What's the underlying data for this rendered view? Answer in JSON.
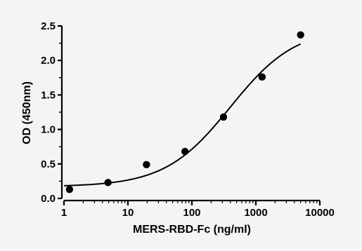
{
  "chart_data": {
    "type": "scatter",
    "title": "",
    "xlabel": "MERS-RBD-Fc (ng/ml)",
    "ylabel": "OD (450nm)",
    "x_scale": "log",
    "xlim": [
      1,
      10000
    ],
    "ylim": [
      0,
      2.5
    ],
    "x_ticks": [
      1,
      10,
      100,
      1000,
      10000
    ],
    "x_tick_labels": [
      "1",
      "10",
      "100",
      "1000",
      "10000"
    ],
    "y_ticks": [
      0,
      0.5,
      1.0,
      1.5,
      2.0,
      2.5
    ],
    "y_tick_labels": [
      "0.0",
      "0.5",
      "1.0",
      "1.5",
      "2.0",
      "2.5"
    ],
    "grid": false,
    "legend": "none",
    "series": [
      {
        "x": [
          1.22,
          4.88,
          19.5,
          78,
          312,
          1250,
          5000
        ],
        "y": [
          0.13,
          0.23,
          0.49,
          0.68,
          1.18,
          1.76,
          2.37
        ]
      }
    ],
    "fit_curve": {
      "model": "4PL",
      "bottom": 0.17,
      "top": 2.48,
      "ec50": 400,
      "hill": 0.85,
      "x_range": [
        1,
        5000
      ]
    },
    "colors": {
      "marker": "#000000",
      "line": "#000000",
      "background": "#f4f4f4"
    }
  }
}
